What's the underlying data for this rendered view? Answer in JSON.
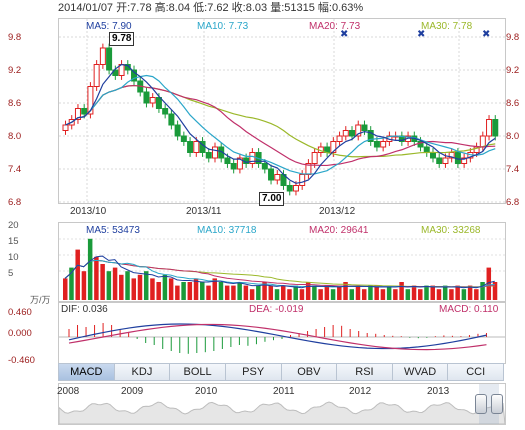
{
  "header": {
    "quote_line": "2014/01/07 开:7.78 高:8.04 低:7.62 收:8.03 量:51315 幅:0.63%"
  },
  "price_panel": {
    "ma_labels": {
      "ma5": "MA5: 7.90",
      "ma10": "MA10: 7.73",
      "ma20": "MA20: 7.73",
      "ma30": "MA30: 7.78"
    },
    "ma_colors": {
      "ma5": "#1f3f9f",
      "ma10": "#2aa6c9",
      "ma20": "#c0306a",
      "ma30": "#9bb82a"
    },
    "y_ticks": [
      "9.8",
      "9.2",
      "8.6",
      "8.0",
      "7.4",
      "6.8"
    ],
    "high_tag": "9.78",
    "low_tag": "7.00",
    "x_labels": [
      "2013/10",
      "2013/11",
      "2013/12"
    ],
    "marker_icon": "x-marker-icon"
  },
  "volume_panel": {
    "ma_labels": {
      "ma5": "MA5: 53473",
      "ma10": "MA10: 37718",
      "ma20": "MA20: 29641",
      "ma30": "MA30: 33268"
    },
    "y_ticks": [
      "20",
      "15",
      "10",
      "5"
    ],
    "unit_label": "万/万"
  },
  "macd_panel": {
    "dif_label": "DIF: 0.036",
    "dea_label": "DEA: -0.019",
    "macd_label": "MACD: 0.110",
    "y_ticks": [
      "0.460",
      "0.000",
      "-0.460"
    ]
  },
  "indicator_tabs": [
    "MACD",
    "KDJ",
    "BOLL",
    "PSY",
    "OBV",
    "RSI",
    "WVAD",
    "CCI"
  ],
  "active_tab": "MACD",
  "timeline": {
    "years": [
      "2008",
      "2009",
      "2010",
      "2011",
      "2012",
      "2013"
    ]
  },
  "colors": {
    "up": "#e02020",
    "down": "#1a9a3a",
    "price_axis": "#9b1b1b"
  }
}
